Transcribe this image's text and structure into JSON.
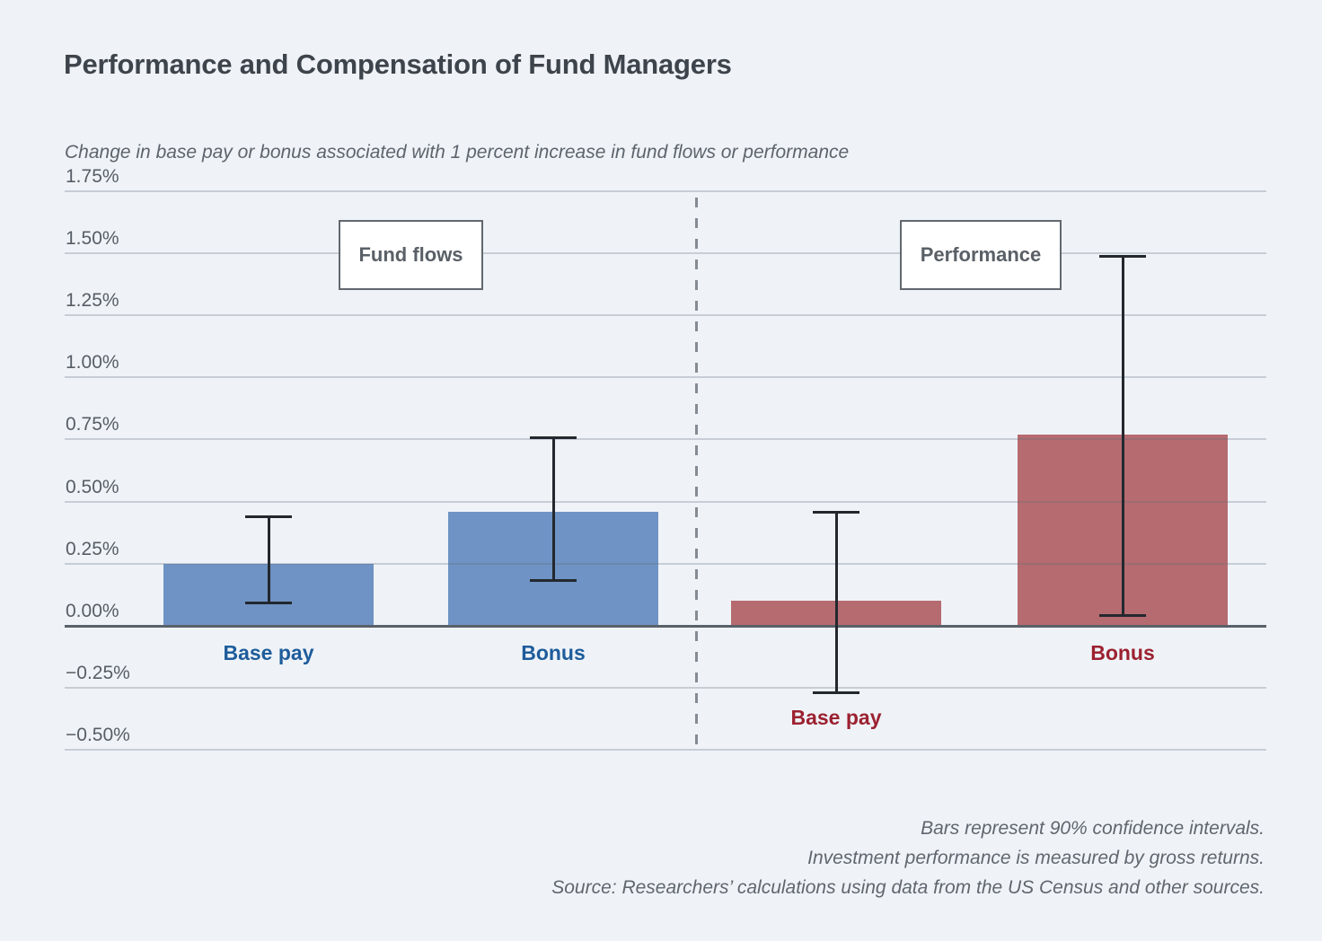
{
  "chart_data": {
    "type": "bar",
    "title": "Performance and Compensation of Fund Managers",
    "subtitle": "Change in base pay or bonus associated with 1 percent increase in fund flows or performance",
    "xlabel": "",
    "ylabel": "",
    "grid": true,
    "error_bars_meaning": "90% confidence intervals",
    "y_axis": {
      "min": -0.5,
      "max": 1.75,
      "step": 0.25,
      "unit": "percent",
      "tick_labels": [
        "1.75%",
        "1.50%",
        "1.25%",
        "1.00%",
        "0.75%",
        "0.50%",
        "0.25%",
        "0.00%",
        "−0.25%",
        "−0.50%"
      ]
    },
    "groups": [
      {
        "label": "Fund flows",
        "bar_color": "#6e93c4",
        "label_color": "#1e5c9b",
        "bars": [
          {
            "category": "Base pay",
            "value": 0.25,
            "ci_low": 0.09,
            "ci_high": 0.44
          },
          {
            "category": "Bonus",
            "value": 0.46,
            "ci_low": 0.18,
            "ci_high": 0.76
          }
        ]
      },
      {
        "label": "Performance",
        "bar_color": "#b56b70",
        "label_color": "#9c2130",
        "bars": [
          {
            "category": "Base pay",
            "value": 0.1,
            "ci_low": -0.27,
            "ci_high": 0.46
          },
          {
            "category": "Bonus",
            "value": 0.77,
            "ci_low": 0.04,
            "ci_high": 1.49
          }
        ]
      }
    ],
    "divider": "dashed vertical line separating Fund flows and Performance groups",
    "notes": [
      "Bars represent 90% confidence intervals.",
      "Investment performance is measured by gross returns.",
      "Source: Researchers’ calculations using data from the US Census and other sources."
    ]
  }
}
